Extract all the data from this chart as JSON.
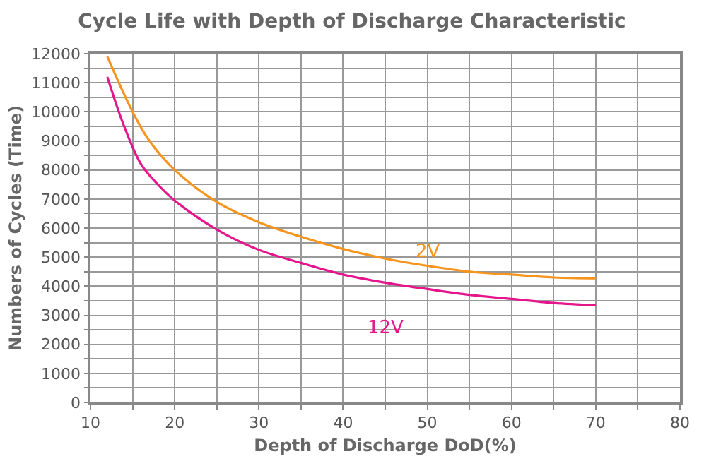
{
  "chart_data": {
    "type": "line",
    "title": "Cycle Life with Depth of Discharge Characteristic",
    "xlabel": "Depth of Discharge DoD(%)",
    "ylabel": "Numbers of Cycles (Time)",
    "xlim": [
      10,
      80
    ],
    "xticks": [
      10,
      {
        "value": 15,
        "label": null
      },
      20,
      {
        "value": 25,
        "label": null
      },
      30,
      {
        "value": 35,
        "label": null
      },
      40,
      {
        "value": 45,
        "label": null
      },
      50,
      {
        "value": 55,
        "label": null
      },
      60,
      {
        "value": 65,
        "label": null
      },
      70,
      {
        "value": 75,
        "label": null
      },
      80
    ],
    "ylim": [
      0,
      12000
    ],
    "yticks": [
      0,
      {
        "value": 500,
        "label": null
      },
      1000,
      {
        "value": 1500,
        "label": null
      },
      2000,
      {
        "value": 2500,
        "label": null
      },
      3000,
      {
        "value": 3500,
        "label": null
      },
      4000,
      {
        "value": 4500,
        "label": null
      },
      5000,
      {
        "value": 5500,
        "label": null
      },
      6000,
      {
        "value": 6500,
        "label": null
      },
      7000,
      {
        "value": 7500,
        "label": null
      },
      8000,
      {
        "value": 8500,
        "label": null
      },
      9000,
      {
        "value": 9500,
        "label": null
      },
      10000,
      {
        "value": 10500,
        "label": null
      },
      11000,
      {
        "value": 11500,
        "label": null
      },
      12000
    ],
    "grid": true,
    "legend": false,
    "marker": "none",
    "line_style": "solid",
    "series": [
      {
        "name": "2V",
        "color": "#f7941d",
        "x": [
          12,
          15,
          17,
          20,
          25,
          30,
          35,
          40,
          45,
          50,
          55,
          60,
          65,
          70
        ],
        "values": [
          11900,
          10000,
          9000,
          8000,
          6900,
          6200,
          5700,
          5280,
          4950,
          4700,
          4500,
          4400,
          4300,
          4270
        ]
      },
      {
        "name": "12V",
        "color": "#e5168c",
        "x": [
          12,
          14,
          16,
          18,
          20,
          25,
          30,
          35,
          40,
          45,
          50,
          55,
          60,
          65,
          70
        ],
        "values": [
          11200,
          9500,
          8200,
          7500,
          6950,
          5950,
          5250,
          4800,
          4400,
          4120,
          3900,
          3700,
          3560,
          3420,
          3340
        ]
      }
    ]
  }
}
